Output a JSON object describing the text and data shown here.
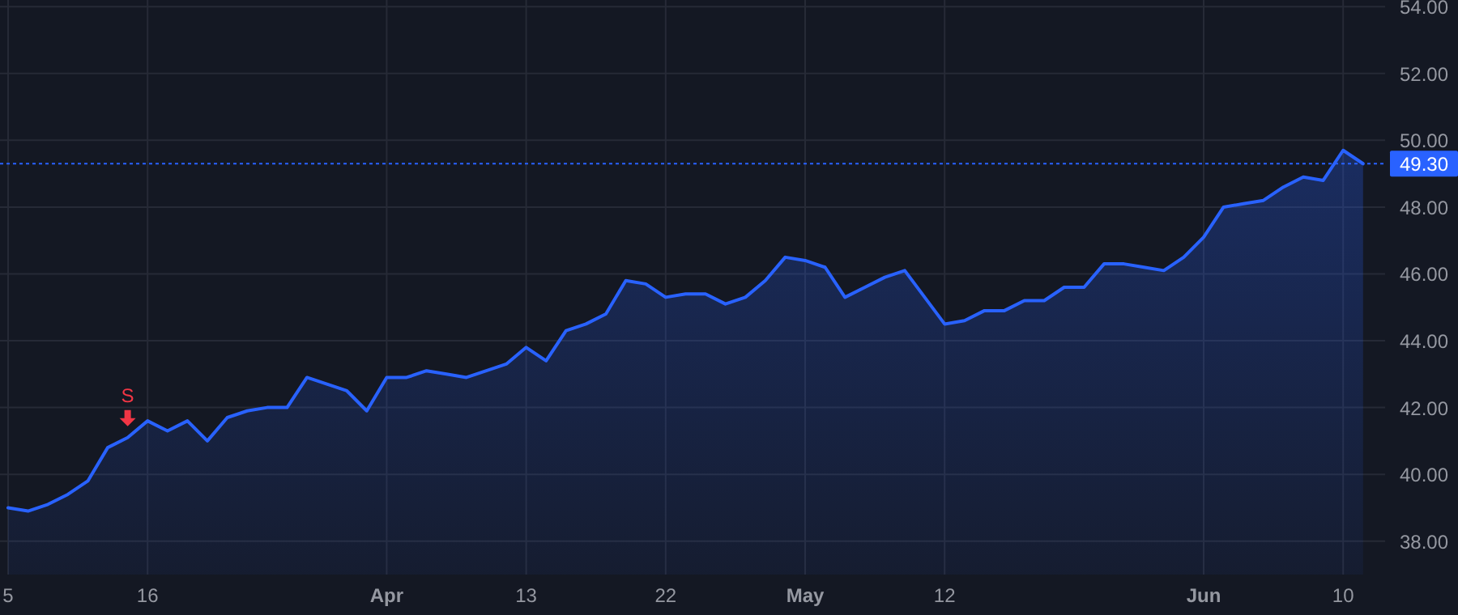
{
  "chart_data": {
    "type": "area",
    "categories": [
      "5",
      null,
      null,
      null,
      null,
      null,
      null,
      "16",
      null,
      null,
      null,
      null,
      null,
      null,
      null,
      null,
      null,
      null,
      null,
      "Apr",
      null,
      null,
      null,
      null,
      null,
      null,
      "13",
      null,
      null,
      null,
      null,
      null,
      null,
      "22",
      null,
      null,
      null,
      null,
      null,
      null,
      "May",
      null,
      null,
      null,
      null,
      null,
      null,
      "12",
      null,
      null,
      null,
      null,
      null,
      null,
      null,
      null,
      null,
      null,
      null,
      null,
      "Jun",
      null,
      null,
      null,
      null,
      null,
      null,
      "10",
      null
    ],
    "series": [
      {
        "color": "#2962ff",
        "values": [
          39.0,
          38.9,
          39.1,
          39.4,
          39.8,
          40.8,
          41.1,
          41.6,
          41.3,
          41.6,
          41.0,
          41.7,
          41.9,
          42.0,
          42.0,
          42.9,
          42.7,
          42.5,
          41.9,
          42.9,
          42.9,
          43.1,
          43.0,
          42.9,
          43.1,
          43.3,
          43.8,
          43.4,
          44.3,
          44.5,
          44.8,
          45.8,
          45.7,
          45.3,
          45.4,
          45.4,
          45.1,
          45.3,
          45.8,
          46.5,
          46.4,
          46.2,
          45.3,
          45.6,
          45.9,
          46.1,
          45.3,
          44.5,
          44.6,
          44.9,
          44.9,
          45.2,
          45.2,
          45.6,
          45.6,
          46.3,
          46.3,
          46.2,
          46.1,
          46.5,
          47.1,
          48.0,
          48.1,
          48.2,
          48.6,
          48.9,
          48.8,
          49.7,
          49.3
        ]
      }
    ],
    "ylim": [
      37,
      54.2
    ],
    "yticks": [
      {
        "value": 38,
        "label": "38.00"
      },
      {
        "value": 40,
        "label": "40.00"
      },
      {
        "value": 42,
        "label": "42.00"
      },
      {
        "value": 44,
        "label": "44.00"
      },
      {
        "value": 46,
        "label": "46.00"
      },
      {
        "value": 48,
        "label": "48.00"
      },
      {
        "value": 50,
        "label": "50.00"
      },
      {
        "value": 52,
        "label": "52.00"
      },
      {
        "value": 54,
        "label": "54.00"
      }
    ],
    "grid": true,
    "ref_lines": [
      {
        "axis": "y",
        "value": 49.3,
        "label": "49.30",
        "color": "#2962ff",
        "line_style": "dotted"
      }
    ],
    "annotations": [
      {
        "text": "S",
        "y": 41.1
      }
    ]
  }
}
